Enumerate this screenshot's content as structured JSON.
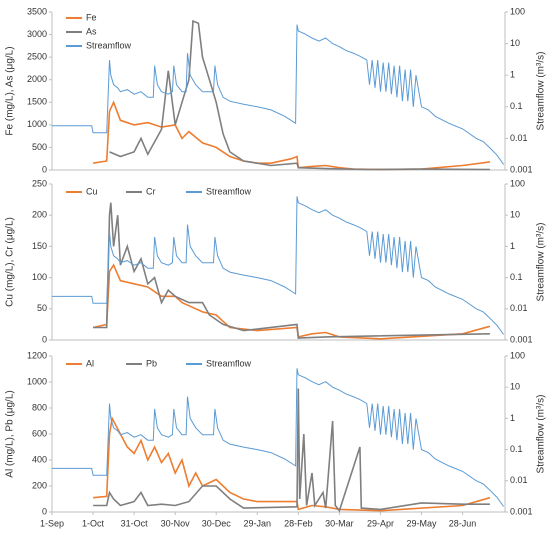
{
  "chart_data": [
    {
      "type": "line",
      "y_label": "Fe (mg/L), As (μg/L)",
      "y2_label": "Streamflow (m³/s)",
      "legend": "upper left",
      "xlim": [
        0,
        331
      ],
      "ylim": [
        0,
        3500
      ],
      "yticks": [
        0,
        500,
        1000,
        1500,
        2000,
        2500,
        3000,
        3500
      ],
      "y2lim": [
        0.001,
        100
      ],
      "y2ticks": [
        0.001,
        0.01,
        0.1,
        1,
        10,
        100
      ],
      "y2scale": "log",
      "series": [
        {
          "name": "Fe",
          "color": "#ed7d31",
          "x": [
            30,
            40,
            42,
            45,
            50,
            60,
            70,
            80,
            90,
            95,
            100,
            110,
            120,
            130,
            140,
            150,
            160,
            175,
            179,
            180,
            190,
            200,
            210,
            220,
            240,
            270,
            300,
            320
          ],
          "values": [
            150,
            200,
            1300,
            1500,
            1100,
            1000,
            1050,
            950,
            1000,
            700,
            850,
            600,
            500,
            300,
            200,
            150,
            150,
            250,
            300,
            50,
            80,
            100,
            50,
            20,
            10,
            20,
            100,
            180
          ]
        },
        {
          "name": "As",
          "color": "#7f7f7f",
          "x": [
            42,
            50,
            60,
            65,
            70,
            80,
            85,
            90,
            95,
            100,
            103,
            107,
            110,
            115,
            120,
            125,
            130,
            140,
            150,
            160,
            179,
            180,
            200,
            230,
            270,
            320
          ],
          "values": [
            400,
            300,
            400,
            700,
            350,
            900,
            2200,
            1000,
            1500,
            2000,
            3300,
            3250,
            2500,
            2000,
            1500,
            800,
            400,
            200,
            150,
            100,
            150,
            50,
            30,
            10,
            20,
            10
          ]
        },
        {
          "name": "Streamflow",
          "color": "#5b9bd5",
          "axis": "y2",
          "x": [
            0,
            29,
            30,
            40,
            42,
            43,
            45,
            48,
            50,
            55,
            60,
            65,
            70,
            74,
            75,
            77,
            80,
            85,
            88,
            89,
            91,
            95,
            98,
            99,
            101,
            105,
            110,
            118,
            119,
            121,
            125,
            130,
            140,
            150,
            160,
            170,
            178,
            179,
            180,
            185,
            190,
            195,
            200,
            205,
            210,
            215,
            220,
            225,
            230,
            232,
            234,
            236,
            238,
            240,
            242,
            244,
            246,
            248,
            250,
            252,
            254,
            256,
            258,
            260,
            262,
            264,
            266,
            270,
            275,
            280,
            290,
            300,
            310,
            315,
            320,
            325,
            330
          ],
          "values": [
            0.025,
            0.025,
            0.015,
            0.015,
            3,
            1,
            0.5,
            0.4,
            0.3,
            0.35,
            0.25,
            0.3,
            0.2,
            0.2,
            2,
            0.5,
            0.3,
            0.25,
            0.3,
            2,
            0.5,
            0.3,
            0.3,
            5,
            1,
            0.5,
            0.3,
            0.3,
            2,
            0.5,
            0.2,
            0.15,
            0.12,
            0.1,
            0.08,
            0.05,
            0.03,
            40,
            25,
            20,
            15,
            12,
            15,
            10,
            8,
            6,
            5,
            4,
            3,
            0.5,
            3,
            0.4,
            3,
            0.3,
            2.5,
            0.3,
            2.5,
            0.25,
            2,
            0.2,
            2,
            0.15,
            1.5,
            0.15,
            1.5,
            0.1,
            1,
            0.1,
            0.08,
            0.05,
            0.03,
            0.02,
            0.01,
            0.008,
            0.005,
            0.003,
            0.0015
          ]
        }
      ]
    },
    {
      "type": "line",
      "y_label": "Cu (mg/L), Cr (μg/L)",
      "y2_label": "Streamflow (m³/s)",
      "legend": "upper left",
      "xlim": [
        0,
        331
      ],
      "ylim": [
        0,
        250
      ],
      "yticks": [
        0,
        50,
        100,
        150,
        200,
        250
      ],
      "y2lim": [
        0.001,
        100
      ],
      "y2ticks": [
        0.001,
        0.01,
        0.1,
        1,
        10,
        100
      ],
      "y2scale": "log",
      "series": [
        {
          "name": "Cu",
          "color": "#ed7d31",
          "x": [
            30,
            40,
            42,
            45,
            50,
            60,
            70,
            80,
            90,
            95,
            100,
            110,
            120,
            125,
            130,
            150,
            179,
            180,
            190,
            200,
            210,
            240,
            300,
            320
          ],
          "values": [
            20,
            25,
            110,
            120,
            95,
            90,
            85,
            70,
            70,
            60,
            55,
            45,
            40,
            30,
            20,
            15,
            20,
            5,
            10,
            12,
            5,
            2,
            10,
            22
          ]
        },
        {
          "name": "Cr",
          "color": "#7f7f7f",
          "x": [
            30,
            40,
            42,
            43,
            45,
            48,
            50,
            55,
            60,
            65,
            70,
            75,
            80,
            85,
            90,
            100,
            110,
            115,
            125,
            140,
            179,
            180,
            200,
            320
          ],
          "values": [
            20,
            20,
            200,
            220,
            150,
            200,
            120,
            150,
            110,
            130,
            90,
            100,
            60,
            80,
            70,
            60,
            60,
            40,
            25,
            15,
            25,
            3,
            5,
            10
          ]
        },
        {
          "name": "Streamflow",
          "color": "#5b9bd5",
          "axis": "y2",
          "x": [
            0,
            29,
            30,
            40,
            42,
            43,
            45,
            48,
            50,
            55,
            60,
            65,
            70,
            74,
            75,
            77,
            80,
            85,
            88,
            89,
            91,
            95,
            98,
            99,
            101,
            105,
            110,
            118,
            119,
            121,
            125,
            130,
            140,
            150,
            160,
            170,
            178,
            179,
            180,
            185,
            190,
            195,
            200,
            205,
            210,
            215,
            220,
            225,
            230,
            232,
            234,
            236,
            238,
            240,
            242,
            244,
            246,
            248,
            250,
            252,
            254,
            256,
            258,
            260,
            262,
            264,
            266,
            270,
            275,
            280,
            290,
            300,
            310,
            315,
            320,
            325,
            330
          ],
          "values": [
            0.025,
            0.025,
            0.015,
            0.015,
            3,
            1,
            0.5,
            0.4,
            0.3,
            0.35,
            0.25,
            0.3,
            0.2,
            0.2,
            2,
            0.5,
            0.3,
            0.25,
            0.3,
            2,
            0.5,
            0.3,
            0.3,
            5,
            1,
            0.5,
            0.3,
            0.3,
            2,
            0.5,
            0.2,
            0.15,
            0.12,
            0.1,
            0.08,
            0.05,
            0.03,
            40,
            25,
            20,
            15,
            12,
            15,
            10,
            8,
            6,
            5,
            4,
            3,
            0.5,
            3,
            0.4,
            3,
            0.3,
            2.5,
            0.3,
            2.5,
            0.25,
            2,
            0.2,
            2,
            0.15,
            1.5,
            0.15,
            1.5,
            0.1,
            1,
            0.1,
            0.08,
            0.05,
            0.03,
            0.02,
            0.01,
            0.008,
            0.005,
            0.003,
            0.0015
          ]
        }
      ]
    },
    {
      "type": "line",
      "y_label": "Al (mg/L), Pb (μg/L)",
      "y2_label": "Streamflow (m³/s)",
      "legend": "upper left",
      "xlim": [
        0,
        331
      ],
      "xticks": [
        {
          "value": 0,
          "label": "1-Sep"
        },
        {
          "value": 30,
          "label": "1-Oct"
        },
        {
          "value": 60,
          "label": "31-Oct"
        },
        {
          "value": 90,
          "label": "30-Nov"
        },
        {
          "value": 120,
          "label": "30-Dec"
        },
        {
          "value": 150,
          "label": "29-Jan"
        },
        {
          "value": 180,
          "label": "28-Feb"
        },
        {
          "value": 210,
          "label": "30-Mar"
        },
        {
          "value": 240,
          "label": "29-Apr"
        },
        {
          "value": 270,
          "label": "29-May"
        },
        {
          "value": 300,
          "label": "28-Jun"
        }
      ],
      "ylim": [
        0,
        1200
      ],
      "yticks": [
        0,
        200,
        400,
        600,
        800,
        1000,
        1200
      ],
      "y2lim": [
        0.001,
        100
      ],
      "y2ticks": [
        0.001,
        0.01,
        0.1,
        1,
        10,
        100
      ],
      "y2scale": "log",
      "series": [
        {
          "name": "Al",
          "color": "#ed7d31",
          "x": [
            30,
            40,
            42,
            44,
            50,
            55,
            60,
            65,
            70,
            75,
            80,
            85,
            90,
            95,
            100,
            105,
            110,
            120,
            130,
            140,
            150,
            179,
            180,
            190,
            200,
            210,
            240,
            300,
            320
          ],
          "values": [
            110,
            120,
            600,
            720,
            600,
            500,
            450,
            550,
            400,
            500,
            380,
            450,
            300,
            400,
            200,
            300,
            200,
            250,
            150,
            100,
            80,
            80,
            20,
            50,
            40,
            20,
            10,
            50,
            110
          ]
        },
        {
          "name": "Pb",
          "color": "#7f7f7f",
          "x": [
            30,
            40,
            42,
            45,
            50,
            60,
            65,
            70,
            80,
            90,
            100,
            110,
            120,
            130,
            140,
            179,
            180,
            181,
            184,
            186,
            190,
            192,
            198,
            200,
            205,
            207,
            210,
            225,
            226,
            240,
            270,
            300,
            320
          ],
          "values": [
            50,
            50,
            150,
            100,
            50,
            80,
            150,
            50,
            60,
            50,
            80,
            200,
            200,
            100,
            30,
            40,
            950,
            100,
            600,
            50,
            300,
            50,
            150,
            30,
            700,
            50,
            10,
            500,
            30,
            20,
            70,
            60,
            60
          ]
        },
        {
          "name": "Streamflow",
          "color": "#5b9bd5",
          "axis": "y2",
          "x": [
            0,
            29,
            30,
            40,
            42,
            43,
            45,
            48,
            50,
            55,
            60,
            65,
            70,
            74,
            75,
            77,
            80,
            85,
            88,
            89,
            91,
            95,
            98,
            99,
            101,
            105,
            110,
            118,
            119,
            121,
            125,
            130,
            140,
            150,
            160,
            170,
            178,
            179,
            180,
            185,
            190,
            195,
            200,
            205,
            210,
            215,
            220,
            225,
            230,
            232,
            234,
            236,
            238,
            240,
            242,
            244,
            246,
            248,
            250,
            252,
            254,
            256,
            258,
            260,
            262,
            264,
            266,
            270,
            275,
            280,
            290,
            300,
            310,
            315,
            320,
            325,
            330
          ],
          "values": [
            0.025,
            0.025,
            0.015,
            0.015,
            3,
            1,
            0.5,
            0.4,
            0.3,
            0.35,
            0.25,
            0.3,
            0.2,
            0.2,
            2,
            0.5,
            0.3,
            0.25,
            0.3,
            2,
            0.5,
            0.3,
            0.3,
            5,
            1,
            0.5,
            0.3,
            0.3,
            2,
            0.5,
            0.2,
            0.15,
            0.12,
            0.1,
            0.08,
            0.05,
            0.03,
            40,
            25,
            20,
            15,
            12,
            15,
            10,
            8,
            6,
            5,
            4,
            3,
            0.5,
            3,
            0.4,
            3,
            0.3,
            2.5,
            0.3,
            2.5,
            0.25,
            2,
            0.2,
            2,
            0.15,
            1.5,
            0.15,
            1.5,
            0.1,
            1,
            0.1,
            0.08,
            0.05,
            0.03,
            0.02,
            0.01,
            0.008,
            0.005,
            0.003,
            0.0015
          ]
        }
      ]
    }
  ]
}
